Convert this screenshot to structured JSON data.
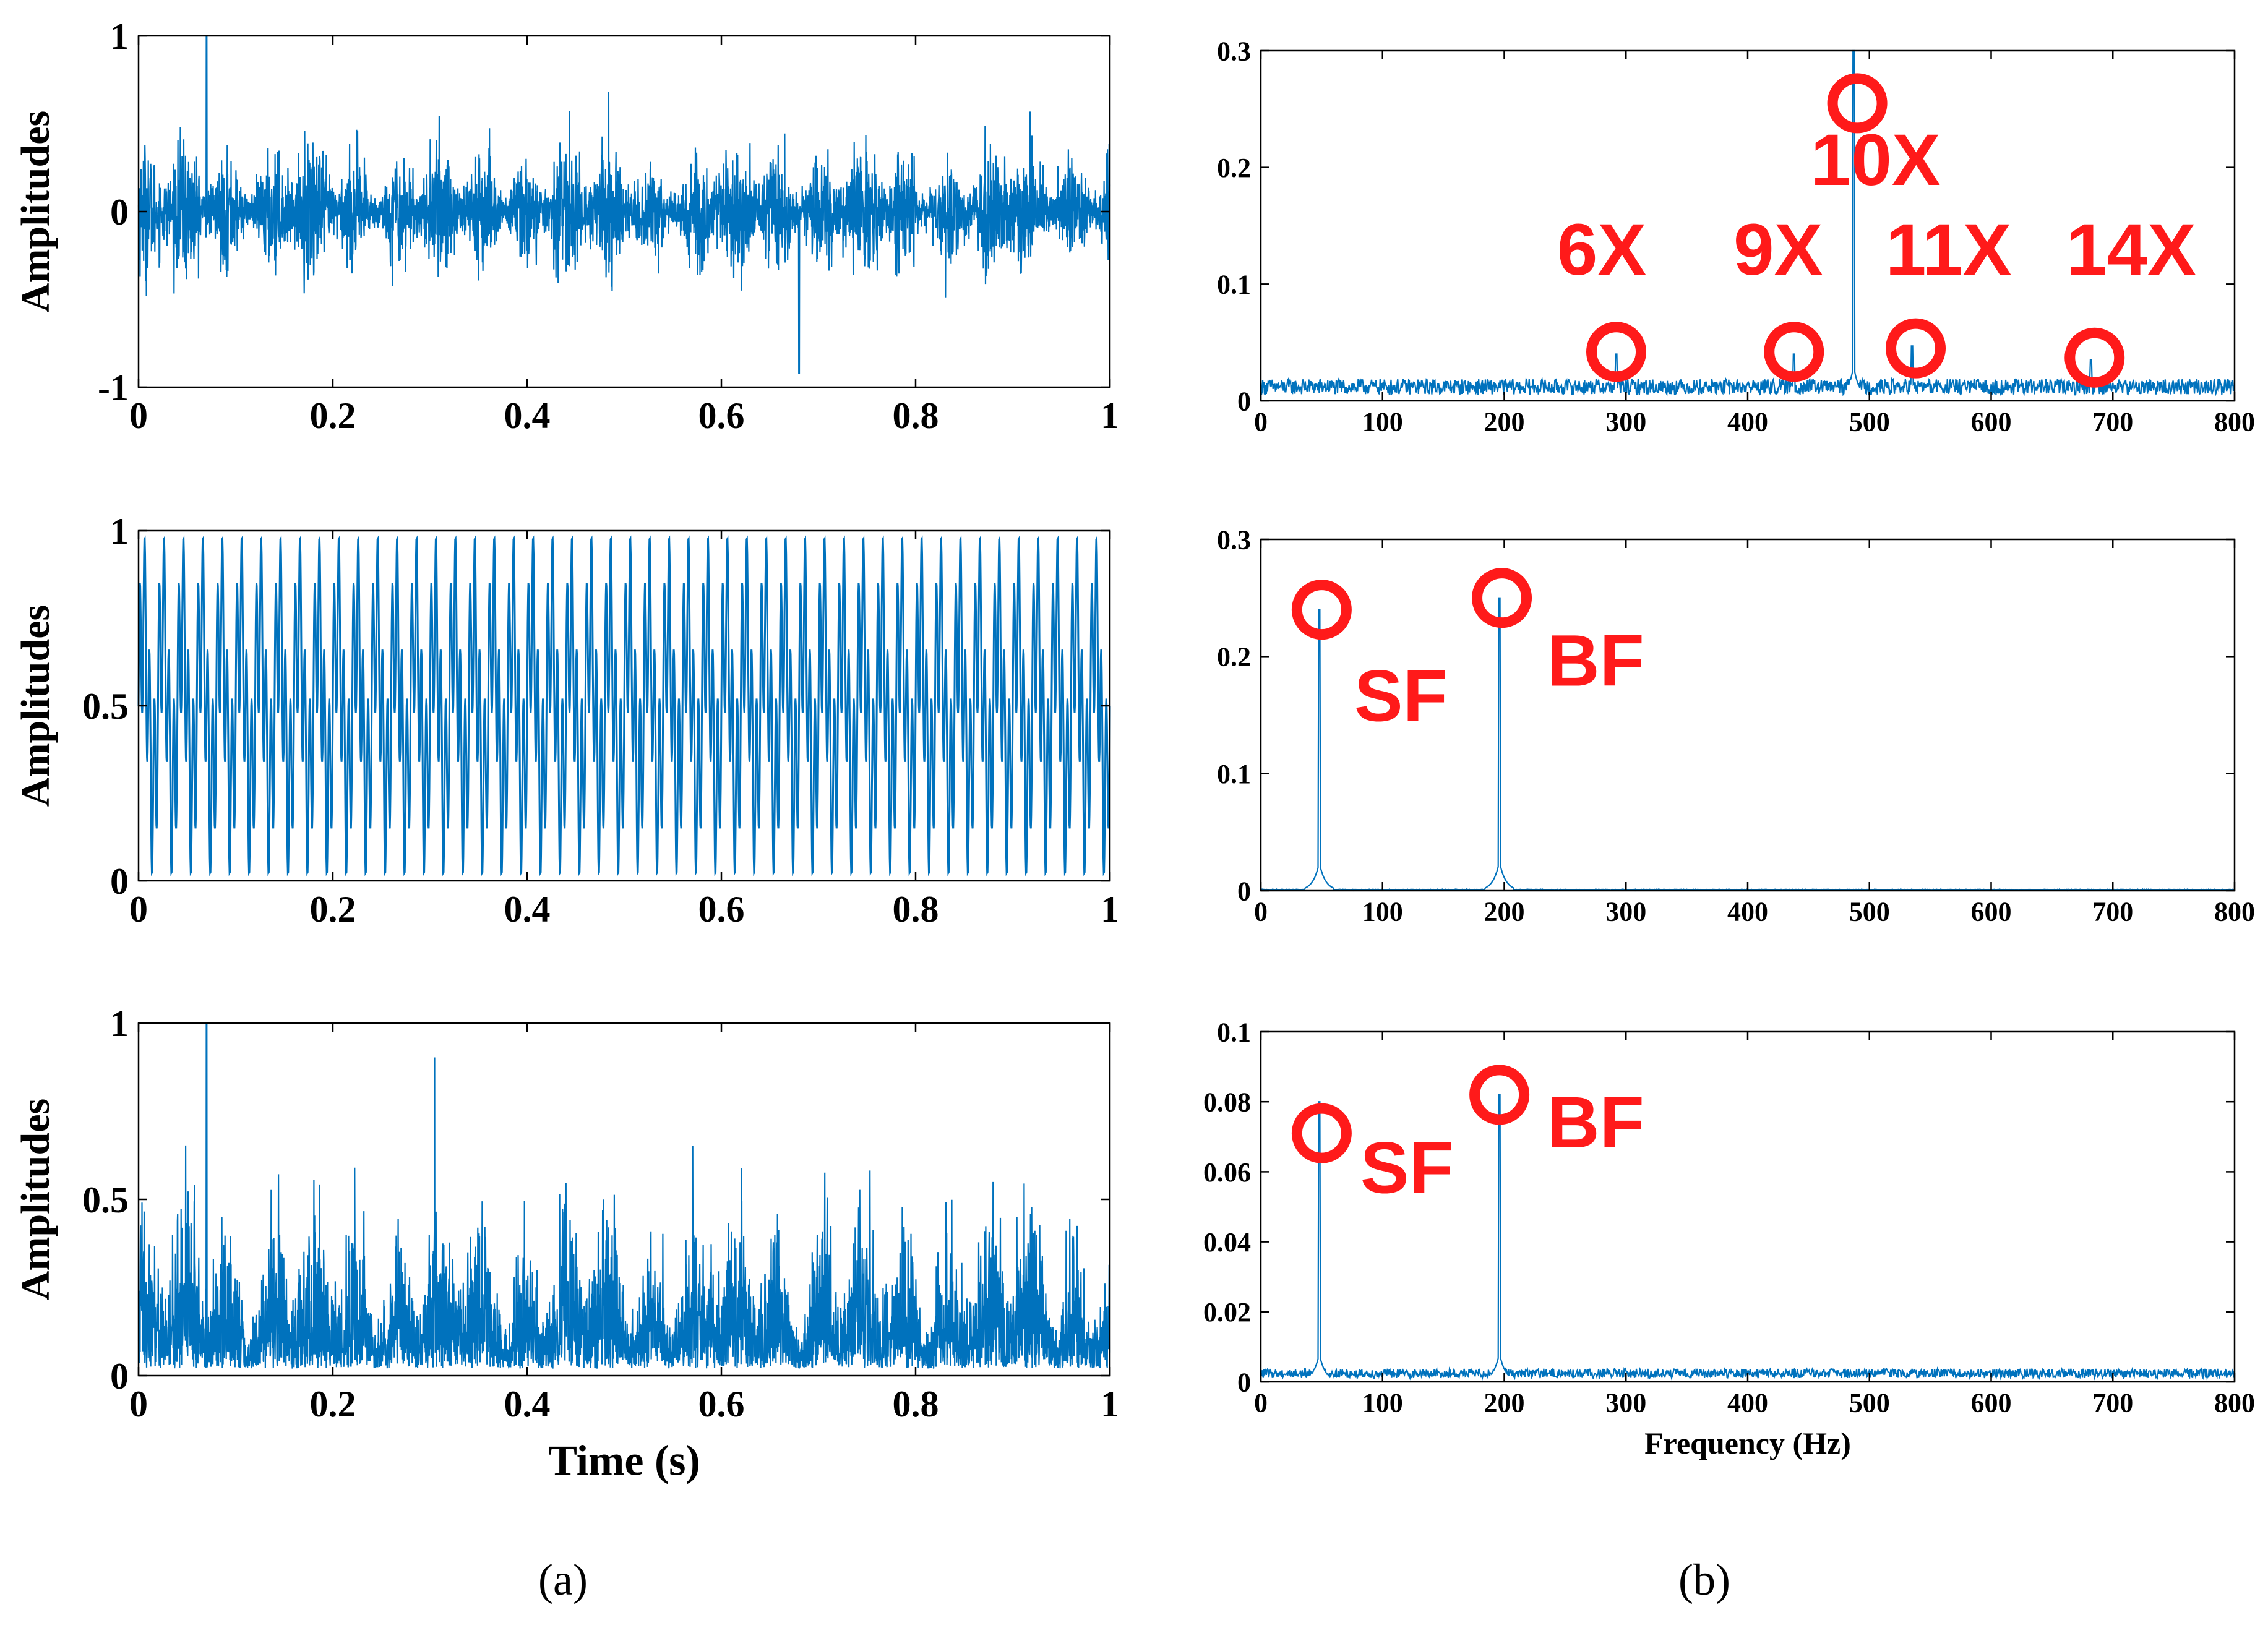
{
  "colors": {
    "signal": "#0072BD",
    "annotation": "#FF1A1A",
    "axis": "#000000",
    "background": "#ffffff"
  },
  "captions": {
    "left": "(a)",
    "right": "(b)"
  },
  "chart_data": [
    {
      "id": "time-1",
      "type": "line",
      "signal_style": "noise",
      "xlabel": "",
      "ylabel": "Amplitudes",
      "xlim": [
        0,
        1
      ],
      "ylim": [
        -1,
        1
      ],
      "xticks": [
        0,
        0.2,
        0.4,
        0.6,
        0.8,
        1
      ],
      "xticklabels": [
        "0",
        "0.2",
        "0.4",
        "0.6",
        "0.8",
        "1"
      ],
      "yticks": [
        -1,
        0,
        1
      ],
      "yticklabels": [
        "-1",
        "0",
        "1"
      ],
      "grid": false,
      "envelope": {
        "typical_abs": 0.4,
        "peak": 1.0,
        "peak_at": 0.07,
        "min": -0.92,
        "min_at": 0.68
      }
    },
    {
      "id": "spec-1",
      "type": "line",
      "signal_style": "spectrum",
      "xlabel": "",
      "ylabel": "",
      "xlim": [
        0,
        800
      ],
      "ylim": [
        0,
        0.3
      ],
      "xticks": [
        0,
        100,
        200,
        300,
        400,
        500,
        600,
        700,
        800
      ],
      "xticklabels": [
        "0",
        "100",
        "200",
        "300",
        "400",
        "500",
        "600",
        "700",
        "800"
      ],
      "yticks": [
        0,
        0.1,
        0.2,
        0.3
      ],
      "yticklabels": [
        "0",
        "0.1",
        "0.2",
        "0.3"
      ],
      "grid": false,
      "noise_floor": 0.015,
      "peaks": [
        {
          "x": 292,
          "y": 0.04
        },
        {
          "x": 438,
          "y": 0.04
        },
        {
          "x": 487,
          "y": 0.3
        },
        {
          "x": 535,
          "y": 0.047
        },
        {
          "x": 682,
          "y": 0.035
        }
      ],
      "annotations": [
        {
          "label": "6X",
          "x": 292,
          "y": 0.042,
          "label_x": 280,
          "label_y": 0.108
        },
        {
          "label": "9X",
          "x": 438,
          "y": 0.042,
          "label_x": 425,
          "label_y": 0.108
        },
        {
          "label": "10X",
          "x": 490,
          "y": 0.255,
          "label_x": 505,
          "label_y": 0.185
        },
        {
          "label": "11X",
          "x": 538,
          "y": 0.045,
          "label_x": 565,
          "label_y": 0.108
        },
        {
          "label": "14X",
          "x": 685,
          "y": 0.037,
          "label_x": 715,
          "label_y": 0.108
        }
      ]
    },
    {
      "id": "time-2",
      "type": "line",
      "signal_style": "periodic",
      "xlabel": "",
      "ylabel": "Amplitudes",
      "xlim": [
        0,
        1
      ],
      "ylim": [
        0,
        1
      ],
      "xticks": [
        0,
        0.2,
        0.4,
        0.6,
        0.8,
        1
      ],
      "xticklabels": [
        "0",
        "0.2",
        "0.4",
        "0.6",
        "0.8",
        "1"
      ],
      "yticks": [
        0,
        0.5,
        1
      ],
      "yticklabels": [
        "0",
        "0.5",
        "1"
      ],
      "grid": false,
      "periodic": {
        "fundamental_hz": 50,
        "harmonic_hz": 200,
        "offset": 0.5,
        "amp1": 0.25,
        "amp2": 0.25
      }
    },
    {
      "id": "spec-2",
      "type": "line",
      "signal_style": "spectrum",
      "xlabel": "",
      "ylabel": "",
      "xlim": [
        0,
        800
      ],
      "ylim": [
        0,
        0.3
      ],
      "xticks": [
        0,
        100,
        200,
        300,
        400,
        500,
        600,
        700,
        800
      ],
      "xticklabels": [
        "0",
        "100",
        "200",
        "300",
        "400",
        "500",
        "600",
        "700",
        "800"
      ],
      "yticks": [
        0,
        0.1,
        0.2,
        0.3
      ],
      "yticklabels": [
        "0",
        "0.1",
        "0.2",
        "0.3"
      ],
      "grid": false,
      "noise_floor": 0.001,
      "peaks": [
        {
          "x": 48,
          "y": 0.24
        },
        {
          "x": 196,
          "y": 0.25
        }
      ],
      "annotations": [
        {
          "label": "SF",
          "x": 50,
          "y": 0.24,
          "label_x": 115,
          "label_y": 0.145
        },
        {
          "label": "BF",
          "x": 198,
          "y": 0.25,
          "label_x": 275,
          "label_y": 0.175
        }
      ]
    },
    {
      "id": "time-3",
      "type": "line",
      "signal_style": "noise-positive",
      "xlabel": "Time (s)",
      "ylabel": "Amplitudes",
      "xlim": [
        0,
        1
      ],
      "ylim": [
        0,
        1
      ],
      "xticks": [
        0,
        0.2,
        0.4,
        0.6,
        0.8,
        1
      ],
      "xticklabels": [
        "0",
        "0.2",
        "0.4",
        "0.6",
        "0.8",
        "1"
      ],
      "yticks": [
        0,
        0.5,
        1
      ],
      "yticklabels": [
        "0",
        "0.5",
        "1"
      ],
      "grid": false,
      "envelope": {
        "typical_abs": 0.35,
        "peak": 1.0,
        "peak_at": 0.07,
        "min": 0,
        "min_at": 0
      }
    },
    {
      "id": "spec-3",
      "type": "line",
      "signal_style": "spectrum",
      "xlabel": "Frequency (Hz)",
      "ylabel": "",
      "xlim": [
        0,
        800
      ],
      "ylim": [
        0,
        0.1
      ],
      "xticks": [
        0,
        100,
        200,
        300,
        400,
        500,
        600,
        700,
        800
      ],
      "xticklabels": [
        "0",
        "100",
        "200",
        "300",
        "400",
        "500",
        "600",
        "700",
        "800"
      ],
      "yticks": [
        0,
        0.02,
        0.04,
        0.06,
        0.08,
        0.1
      ],
      "yticklabels": [
        "0",
        "0.02",
        "0.04",
        "0.06",
        "0.08",
        "0.1"
      ],
      "grid": false,
      "noise_floor": 0.003,
      "peaks": [
        {
          "x": 48,
          "y": 0.08
        },
        {
          "x": 196,
          "y": 0.082
        }
      ],
      "annotations": [
        {
          "label": "SF",
          "x": 50,
          "y": 0.071,
          "label_x": 120,
          "label_y": 0.054
        },
        {
          "label": "BF",
          "x": 196,
          "y": 0.082,
          "label_x": 275,
          "label_y": 0.067
        }
      ]
    }
  ]
}
